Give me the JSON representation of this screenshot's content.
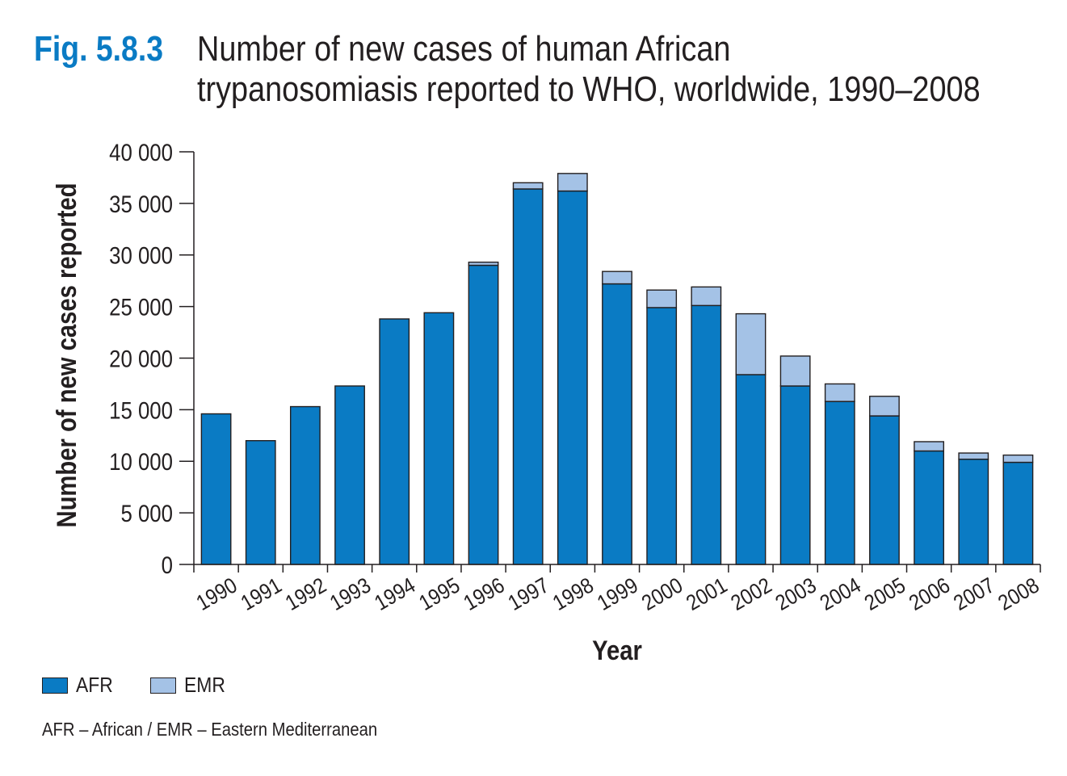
{
  "header": {
    "fig_label": "Fig. 5.8.3",
    "title_line1": "Number of new cases of human African",
    "title_line2": "trypanosomiasis reported to WHO, worldwide, 1990–2008"
  },
  "colors": {
    "afr": "#0a7bc4",
    "emr": "#a4c2e6",
    "fig_label": "#0a7bc4",
    "axis": "#231f20"
  },
  "chart_data": {
    "type": "bar",
    "stacked": true,
    "title": "Number of new cases of human African trypanosomiasis reported to WHO, worldwide, 1990–2008",
    "xlabel": "Year",
    "ylabel": "Number of new cases reported",
    "ylim": [
      0,
      40000
    ],
    "yticks": [
      0,
      5000,
      10000,
      15000,
      20000,
      25000,
      30000,
      35000,
      40000
    ],
    "ytick_labels": [
      "0",
      "5 000",
      "10 000",
      "15 000",
      "20 000",
      "25 000",
      "30 000",
      "35 000",
      "40 000"
    ],
    "categories": [
      "1990",
      "1991",
      "1992",
      "1993",
      "1994",
      "1995",
      "1996",
      "1997",
      "1998",
      "1999",
      "2000",
      "2001",
      "2002",
      "2003",
      "2004",
      "2005",
      "2006",
      "2007",
      "2008"
    ],
    "series": [
      {
        "name": "AFR",
        "color": "#0a7bc4",
        "values": [
          14600,
          12000,
          15300,
          17300,
          23800,
          24400,
          29000,
          36400,
          36200,
          27200,
          24900,
          25100,
          18400,
          17300,
          15800,
          14400,
          11000,
          10200,
          9900
        ]
      },
      {
        "name": "EMR",
        "color": "#a4c2e6",
        "values": [
          0,
          0,
          0,
          0,
          0,
          0,
          300,
          600,
          1700,
          1200,
          1700,
          1800,
          5900,
          2900,
          1700,
          1900,
          900,
          600,
          700
        ]
      }
    ],
    "grid": false,
    "legend_position": "bottom-left"
  },
  "legend": {
    "items": [
      {
        "label": "AFR",
        "color": "#0a7bc4"
      },
      {
        "label": "EMR",
        "color": "#a4c2e6"
      }
    ]
  },
  "footnote": "AFR – African / EMR – Eastern Mediterranean"
}
